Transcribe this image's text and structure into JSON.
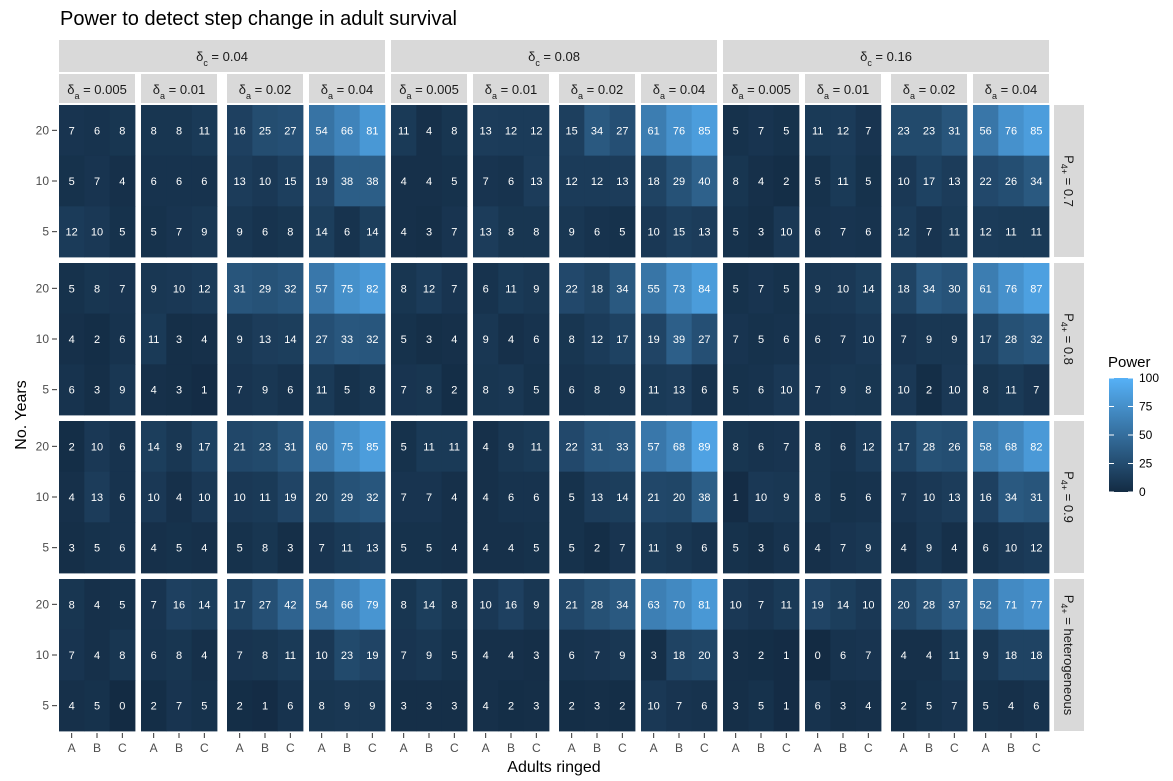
{
  "chart_data": {
    "type": "heatmap",
    "title": "Power to detect step change in adult survival",
    "xlabel": "Adults ringed",
    "ylabel": "No. Years",
    "x_categories": [
      "A",
      "B",
      "C"
    ],
    "y_categories": [
      "5",
      "10",
      "20"
    ],
    "col_strip_outer": [
      "δc = 0.04",
      "δc = 0.08",
      "δc = 0.16"
    ],
    "col_strip_inner": [
      "δa = 0.005",
      "δa = 0.01",
      "δa = 0.02",
      "δa = 0.04"
    ],
    "row_strip": [
      "P4+ = 0.7",
      "P4+ = 0.8",
      "P4+ = 0.9",
      "P4+ = heterogeneous"
    ],
    "legend": {
      "title": "Power",
      "ticks": [
        0,
        25,
        50,
        75,
        100
      ],
      "low_color": "#132B43",
      "high_color": "#56B1F7"
    },
    "value_range": [
      0,
      100
    ],
    "note": "values[row][panel][yearIndex 0=20,1=10,2=5][A,B,C]",
    "values": [
      [
        [
          [
            7,
            6,
            8
          ],
          [
            5,
            7,
            4
          ],
          [
            12,
            10,
            5
          ]
        ],
        [
          [
            8,
            8,
            11
          ],
          [
            6,
            6,
            6
          ],
          [
            5,
            7,
            9
          ]
        ],
        [
          [
            16,
            25,
            27
          ],
          [
            13,
            10,
            15
          ],
          [
            9,
            6,
            8
          ]
        ],
        [
          [
            54,
            66,
            81
          ],
          [
            19,
            38,
            38
          ],
          [
            14,
            6,
            14
          ]
        ],
        [
          [
            11,
            4,
            8
          ],
          [
            4,
            4,
            5
          ],
          [
            4,
            3,
            7
          ]
        ],
        [
          [
            13,
            12,
            12
          ],
          [
            7,
            6,
            13
          ],
          [
            13,
            8,
            8
          ]
        ],
        [
          [
            15,
            34,
            27
          ],
          [
            12,
            12,
            13
          ],
          [
            9,
            6,
            5
          ]
        ],
        [
          [
            61,
            76,
            85
          ],
          [
            18,
            29,
            40
          ],
          [
            10,
            15,
            13
          ]
        ],
        [
          [
            5,
            7,
            5
          ],
          [
            8,
            4,
            2
          ],
          [
            5,
            3,
            10
          ]
        ],
        [
          [
            11,
            12,
            7
          ],
          [
            5,
            11,
            5
          ],
          [
            6,
            7,
            6
          ]
        ],
        [
          [
            23,
            23,
            31
          ],
          [
            10,
            17,
            13
          ],
          [
            12,
            7,
            11
          ]
        ],
        [
          [
            56,
            76,
            85
          ],
          [
            22,
            26,
            34
          ],
          [
            12,
            11,
            11
          ]
        ]
      ],
      [
        [
          [
            5,
            8,
            7
          ],
          [
            4,
            2,
            6
          ],
          [
            6,
            3,
            9
          ]
        ],
        [
          [
            9,
            10,
            12
          ],
          [
            11,
            3,
            4
          ],
          [
            4,
            3,
            1
          ]
        ],
        [
          [
            31,
            29,
            32
          ],
          [
            9,
            13,
            14
          ],
          [
            7,
            9,
            6
          ]
        ],
        [
          [
            57,
            75,
            82
          ],
          [
            27,
            33,
            32
          ],
          [
            11,
            5,
            8
          ]
        ],
        [
          [
            8,
            12,
            7
          ],
          [
            5,
            3,
            4
          ],
          [
            7,
            8,
            2
          ]
        ],
        [
          [
            6,
            11,
            9
          ],
          [
            9,
            4,
            6
          ],
          [
            8,
            9,
            5
          ]
        ],
        [
          [
            22,
            18,
            34
          ],
          [
            8,
            12,
            17
          ],
          [
            6,
            8,
            9
          ]
        ],
        [
          [
            55,
            73,
            84
          ],
          [
            19,
            39,
            27
          ],
          [
            11,
            13,
            6
          ]
        ],
        [
          [
            5,
            7,
            5
          ],
          [
            7,
            5,
            6
          ],
          [
            5,
            6,
            10
          ]
        ],
        [
          [
            9,
            10,
            14
          ],
          [
            6,
            7,
            10
          ],
          [
            7,
            9,
            8
          ]
        ],
        [
          [
            18,
            34,
            30
          ],
          [
            7,
            9,
            9
          ],
          [
            10,
            2,
            10
          ]
        ],
        [
          [
            61,
            76,
            87
          ],
          [
            17,
            28,
            32
          ],
          [
            8,
            11,
            7
          ]
        ]
      ],
      [
        [
          [
            2,
            10,
            6
          ],
          [
            4,
            13,
            6
          ],
          [
            3,
            5,
            6
          ]
        ],
        [
          [
            14,
            9,
            17
          ],
          [
            10,
            4,
            10
          ],
          [
            4,
            5,
            4
          ]
        ],
        [
          [
            21,
            23,
            31
          ],
          [
            10,
            11,
            19
          ],
          [
            5,
            8,
            3
          ]
        ],
        [
          [
            60,
            75,
            85
          ],
          [
            20,
            29,
            32
          ],
          [
            7,
            11,
            13
          ]
        ],
        [
          [
            5,
            11,
            11
          ],
          [
            7,
            7,
            4
          ],
          [
            5,
            5,
            4
          ]
        ],
        [
          [
            4,
            9,
            11
          ],
          [
            4,
            6,
            6
          ],
          [
            4,
            4,
            5
          ]
        ],
        [
          [
            22,
            31,
            33
          ],
          [
            5,
            13,
            14
          ],
          [
            5,
            2,
            7
          ]
        ],
        [
          [
            57,
            68,
            89
          ],
          [
            21,
            20,
            38
          ],
          [
            11,
            9,
            6
          ]
        ],
        [
          [
            8,
            6,
            7
          ],
          [
            1,
            10,
            9
          ],
          [
            5,
            3,
            6
          ]
        ],
        [
          [
            8,
            6,
            12
          ],
          [
            8,
            5,
            6
          ],
          [
            4,
            7,
            9
          ]
        ],
        [
          [
            17,
            28,
            26
          ],
          [
            7,
            10,
            13
          ],
          [
            4,
            9,
            4
          ]
        ],
        [
          [
            58,
            68,
            82
          ],
          [
            16,
            34,
            31
          ],
          [
            6,
            10,
            12
          ]
        ]
      ],
      [
        [
          [
            8,
            4,
            5
          ],
          [
            7,
            4,
            8
          ],
          [
            4,
            5,
            0
          ]
        ],
        [
          [
            7,
            16,
            14
          ],
          [
            6,
            8,
            4
          ],
          [
            2,
            7,
            5
          ]
        ],
        [
          [
            17,
            27,
            42
          ],
          [
            7,
            8,
            11
          ],
          [
            2,
            1,
            6
          ]
        ],
        [
          [
            54,
            66,
            79
          ],
          [
            10,
            23,
            19
          ],
          [
            8,
            9,
            9
          ]
        ],
        [
          [
            8,
            14,
            8
          ],
          [
            7,
            9,
            5
          ],
          [
            3,
            3,
            3
          ]
        ],
        [
          [
            10,
            16,
            9
          ],
          [
            4,
            4,
            3
          ],
          [
            4,
            2,
            3
          ]
        ],
        [
          [
            21,
            28,
            34
          ],
          [
            6,
            7,
            9
          ],
          [
            2,
            3,
            2
          ]
        ],
        [
          [
            63,
            70,
            81
          ],
          [
            3,
            18,
            20
          ],
          [
            10,
            7,
            6
          ]
        ],
        [
          [
            10,
            7,
            11
          ],
          [
            3,
            2,
            1
          ],
          [
            3,
            5,
            1
          ]
        ],
        [
          [
            19,
            14,
            10
          ],
          [
            0,
            6,
            7
          ],
          [
            6,
            3,
            4
          ]
        ],
        [
          [
            20,
            28,
            37
          ],
          [
            4,
            4,
            11
          ],
          [
            2,
            5,
            7
          ]
        ],
        [
          [
            52,
            71,
            77
          ],
          [
            9,
            18,
            18
          ],
          [
            5,
            4,
            6
          ]
        ]
      ]
    ]
  }
}
